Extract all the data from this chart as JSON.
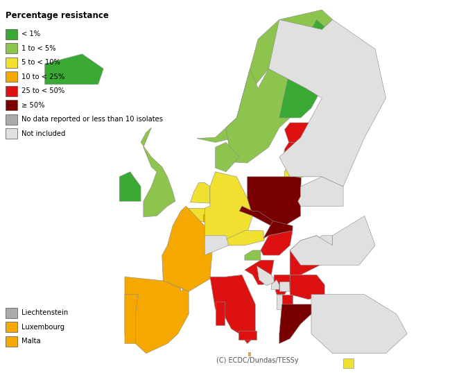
{
  "title": "Percentage resistance",
  "colors": {
    "lt1": "#3aaa35",
    "1to5": "#8dc44e",
    "5to10": "#f0e030",
    "10to25": "#f5a800",
    "25to50": "#dd1111",
    "gte50": "#7a0000",
    "nodata": "#aaaaaa",
    "notincluded": "#e0e0e0",
    "border": "#888888",
    "background": "#ffffff",
    "ocean": "#ffffff"
  },
  "legend_categories": [
    {
      "label": "< 1%",
      "color": "#3aaa35"
    },
    {
      "label": "1 to < 5%",
      "color": "#8dc44e"
    },
    {
      "label": "5 to < 10%",
      "color": "#f0e030"
    },
    {
      "label": "10 to < 25%",
      "color": "#f5a800"
    },
    {
      "label": "25 to < 50%",
      "color": "#dd1111"
    },
    {
      "label": "≥ 50%",
      "color": "#7a0000"
    },
    {
      "label": "No data reported or less than 10 isolates",
      "color": "#aaaaaa"
    },
    {
      "label": "Not included",
      "color": "#e0e0e0"
    }
  ],
  "small_legend": [
    {
      "label": "Liechtenstein",
      "color": "#aaaaaa"
    },
    {
      "label": "Luxembourg",
      "color": "#f5a800"
    },
    {
      "label": "Malta",
      "color": "#f5a800"
    }
  ],
  "country_colors": {
    "Iceland": "#3aaa35",
    "Norway": "#8dc44e",
    "Sweden": "#8dc44e",
    "Finland": "#3aaa35",
    "Estonia": "#dd1111",
    "Latvia": "#dd1111",
    "Lithuania": "#f0e030",
    "Denmark": "#8dc44e",
    "United Kingdom": "#8dc44e",
    "Ireland": "#3aaa35",
    "Netherlands": "#f0e030",
    "Belgium": "#f0e030",
    "Luxembourg": "#f5a800",
    "France": "#f5a800",
    "Spain": "#f5a800",
    "Portugal": "#f5a800",
    "Germany": "#f0e030",
    "Austria": "#f0e030",
    "Switzerland": "#e0e0e0",
    "Liechtenstein": "#aaaaaa",
    "Czech Republic": "#7a0000",
    "Czechia": "#7a0000",
    "Slovakia": "#7a0000",
    "Hungary": "#dd1111",
    "Poland": "#7a0000",
    "Slovenia": "#8dc44e",
    "Croatia": "#dd1111",
    "Bosnia and Herzegovina": "#e0e0e0",
    "Bosnia and Herz.": "#e0e0e0",
    "Serbia": "#dd1111",
    "Montenegro": "#e0e0e0",
    "Kosovo": "#e0e0e0",
    "Albania": "#e0e0e0",
    "North Macedonia": "#dd1111",
    "Macedonia": "#dd1111",
    "Romania": "#dd1111",
    "Bulgaria": "#dd1111",
    "Moldova": "#e0e0e0",
    "Ukraine": "#e0e0e0",
    "Belarus": "#e0e0e0",
    "Russia": "#e0e0e0",
    "Turkey": "#e0e0e0",
    "Cyprus": "#f0e030",
    "Malta": "#f5a800",
    "Italy": "#dd1111",
    "Greece": "#7a0000",
    "San Marino": "#e0e0e0",
    "Monaco": "#e0e0e0",
    "Andorra": "#e0e0e0",
    "Armenia": "#e0e0e0",
    "Azerbaijan": "#e0e0e0",
    "Georgia": "#e0e0e0",
    "Kazakhstan": "#e0e0e0",
    "Faroe Islands": "#e0e0e0"
  },
  "figsize": [
    6.52,
    5.38
  ],
  "dpi": 100,
  "copyright_text": "(C) ECDC/Dundas/TESSy"
}
